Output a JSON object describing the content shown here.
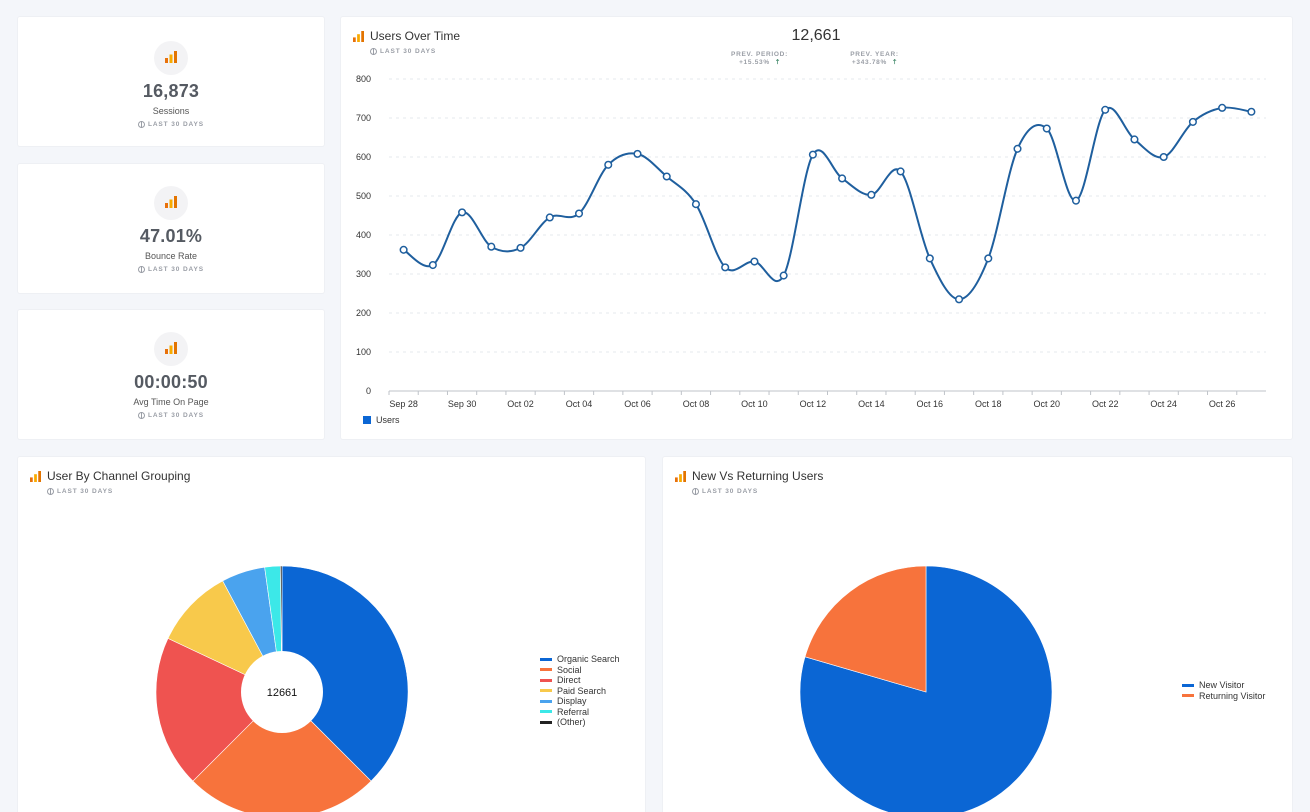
{
  "kpis": [
    {
      "value": "16,873",
      "label": "Sessions",
      "range": "LAST 30 DAYS"
    },
    {
      "value": "47.01%",
      "label": "Bounce Rate",
      "range": "LAST 30 DAYS"
    },
    {
      "value": "00:00:50",
      "label": "Avg Time On Page",
      "range": "LAST 30 DAYS"
    }
  ],
  "users_over_time": {
    "title": "Users Over Time",
    "range": "LAST 30 DAYS",
    "total": "12,661",
    "prev_period": "PREV. PERIOD: +15.53%",
    "prev_year": "PREV. YEAR: +343.78%",
    "legend": "Users",
    "line_color": "#1f5f9e"
  },
  "channel": {
    "title": "User By Channel Grouping",
    "range": "LAST 30 DAYS",
    "center_label": "12661"
  },
  "new_vs_returning": {
    "title": "New Vs Returning Users",
    "range": "LAST 30 DAYS"
  },
  "icons": {
    "analytics": "analytics-bar-icon",
    "range": "globe-icon",
    "trend": "arrow-up-icon"
  },
  "chart_data": [
    {
      "type": "line",
      "title": "Users Over Time",
      "x": [
        "Sep 28",
        "Sep 29",
        "Sep 30",
        "Oct 01",
        "Oct 02",
        "Oct 03",
        "Oct 04",
        "Oct 05",
        "Oct 06",
        "Oct 07",
        "Oct 08",
        "Oct 09",
        "Oct 10",
        "Oct 11",
        "Oct 12",
        "Oct 13",
        "Oct 14",
        "Oct 15",
        "Oct 16",
        "Oct 17",
        "Oct 18",
        "Oct 19",
        "Oct 20",
        "Oct 21",
        "Oct 22",
        "Oct 23",
        "Oct 24",
        "Oct 25",
        "Oct 26",
        "Oct 27"
      ],
      "tick_labels": [
        "Sep 28",
        "Sep 30",
        "Oct 02",
        "Oct 04",
        "Oct 06",
        "Oct 08",
        "Oct 10",
        "Oct 12",
        "Oct 14",
        "Oct 16",
        "Oct 18",
        "Oct 20",
        "Oct 22",
        "Oct 24",
        "Oct 26"
      ],
      "series": [
        {
          "name": "Users",
          "color": "#1f5f9e",
          "values": [
            362,
            323,
            458,
            370,
            367,
            445,
            455,
            580,
            608,
            550,
            479,
            317,
            332,
            296,
            606,
            545,
            503,
            563,
            340,
            235,
            340,
            621,
            673,
            488,
            721,
            645,
            600,
            690,
            726,
            716
          ]
        }
      ],
      "ylim": [
        0,
        800
      ],
      "yticks": [
        0,
        100,
        200,
        300,
        400,
        500,
        600,
        700,
        800
      ],
      "grid": true,
      "legend": "bottom-left"
    },
    {
      "type": "pie",
      "title": "User By Channel Grouping",
      "donut": true,
      "center_label": "12661",
      "labels": [
        "Organic Search",
        "Social",
        "Direct",
        "Paid Search",
        "Display",
        "Referral",
        "(Other)"
      ],
      "values": [
        37.5,
        25.0,
        19.5,
        10.2,
        5.6,
        2.0,
        0.2
      ],
      "colors": [
        "#0b66d4",
        "#f7733c",
        "#ef5350",
        "#f8c94b",
        "#4aa3ee",
        "#3ce8e8",
        "#222222"
      ],
      "legend": "right"
    },
    {
      "type": "pie",
      "title": "New Vs Returning Users",
      "labels": [
        "New Visitor",
        "Returning Visitor"
      ],
      "values": [
        79.5,
        20.5
      ],
      "colors": [
        "#0b66d4",
        "#f7733c"
      ],
      "legend": "right"
    }
  ]
}
